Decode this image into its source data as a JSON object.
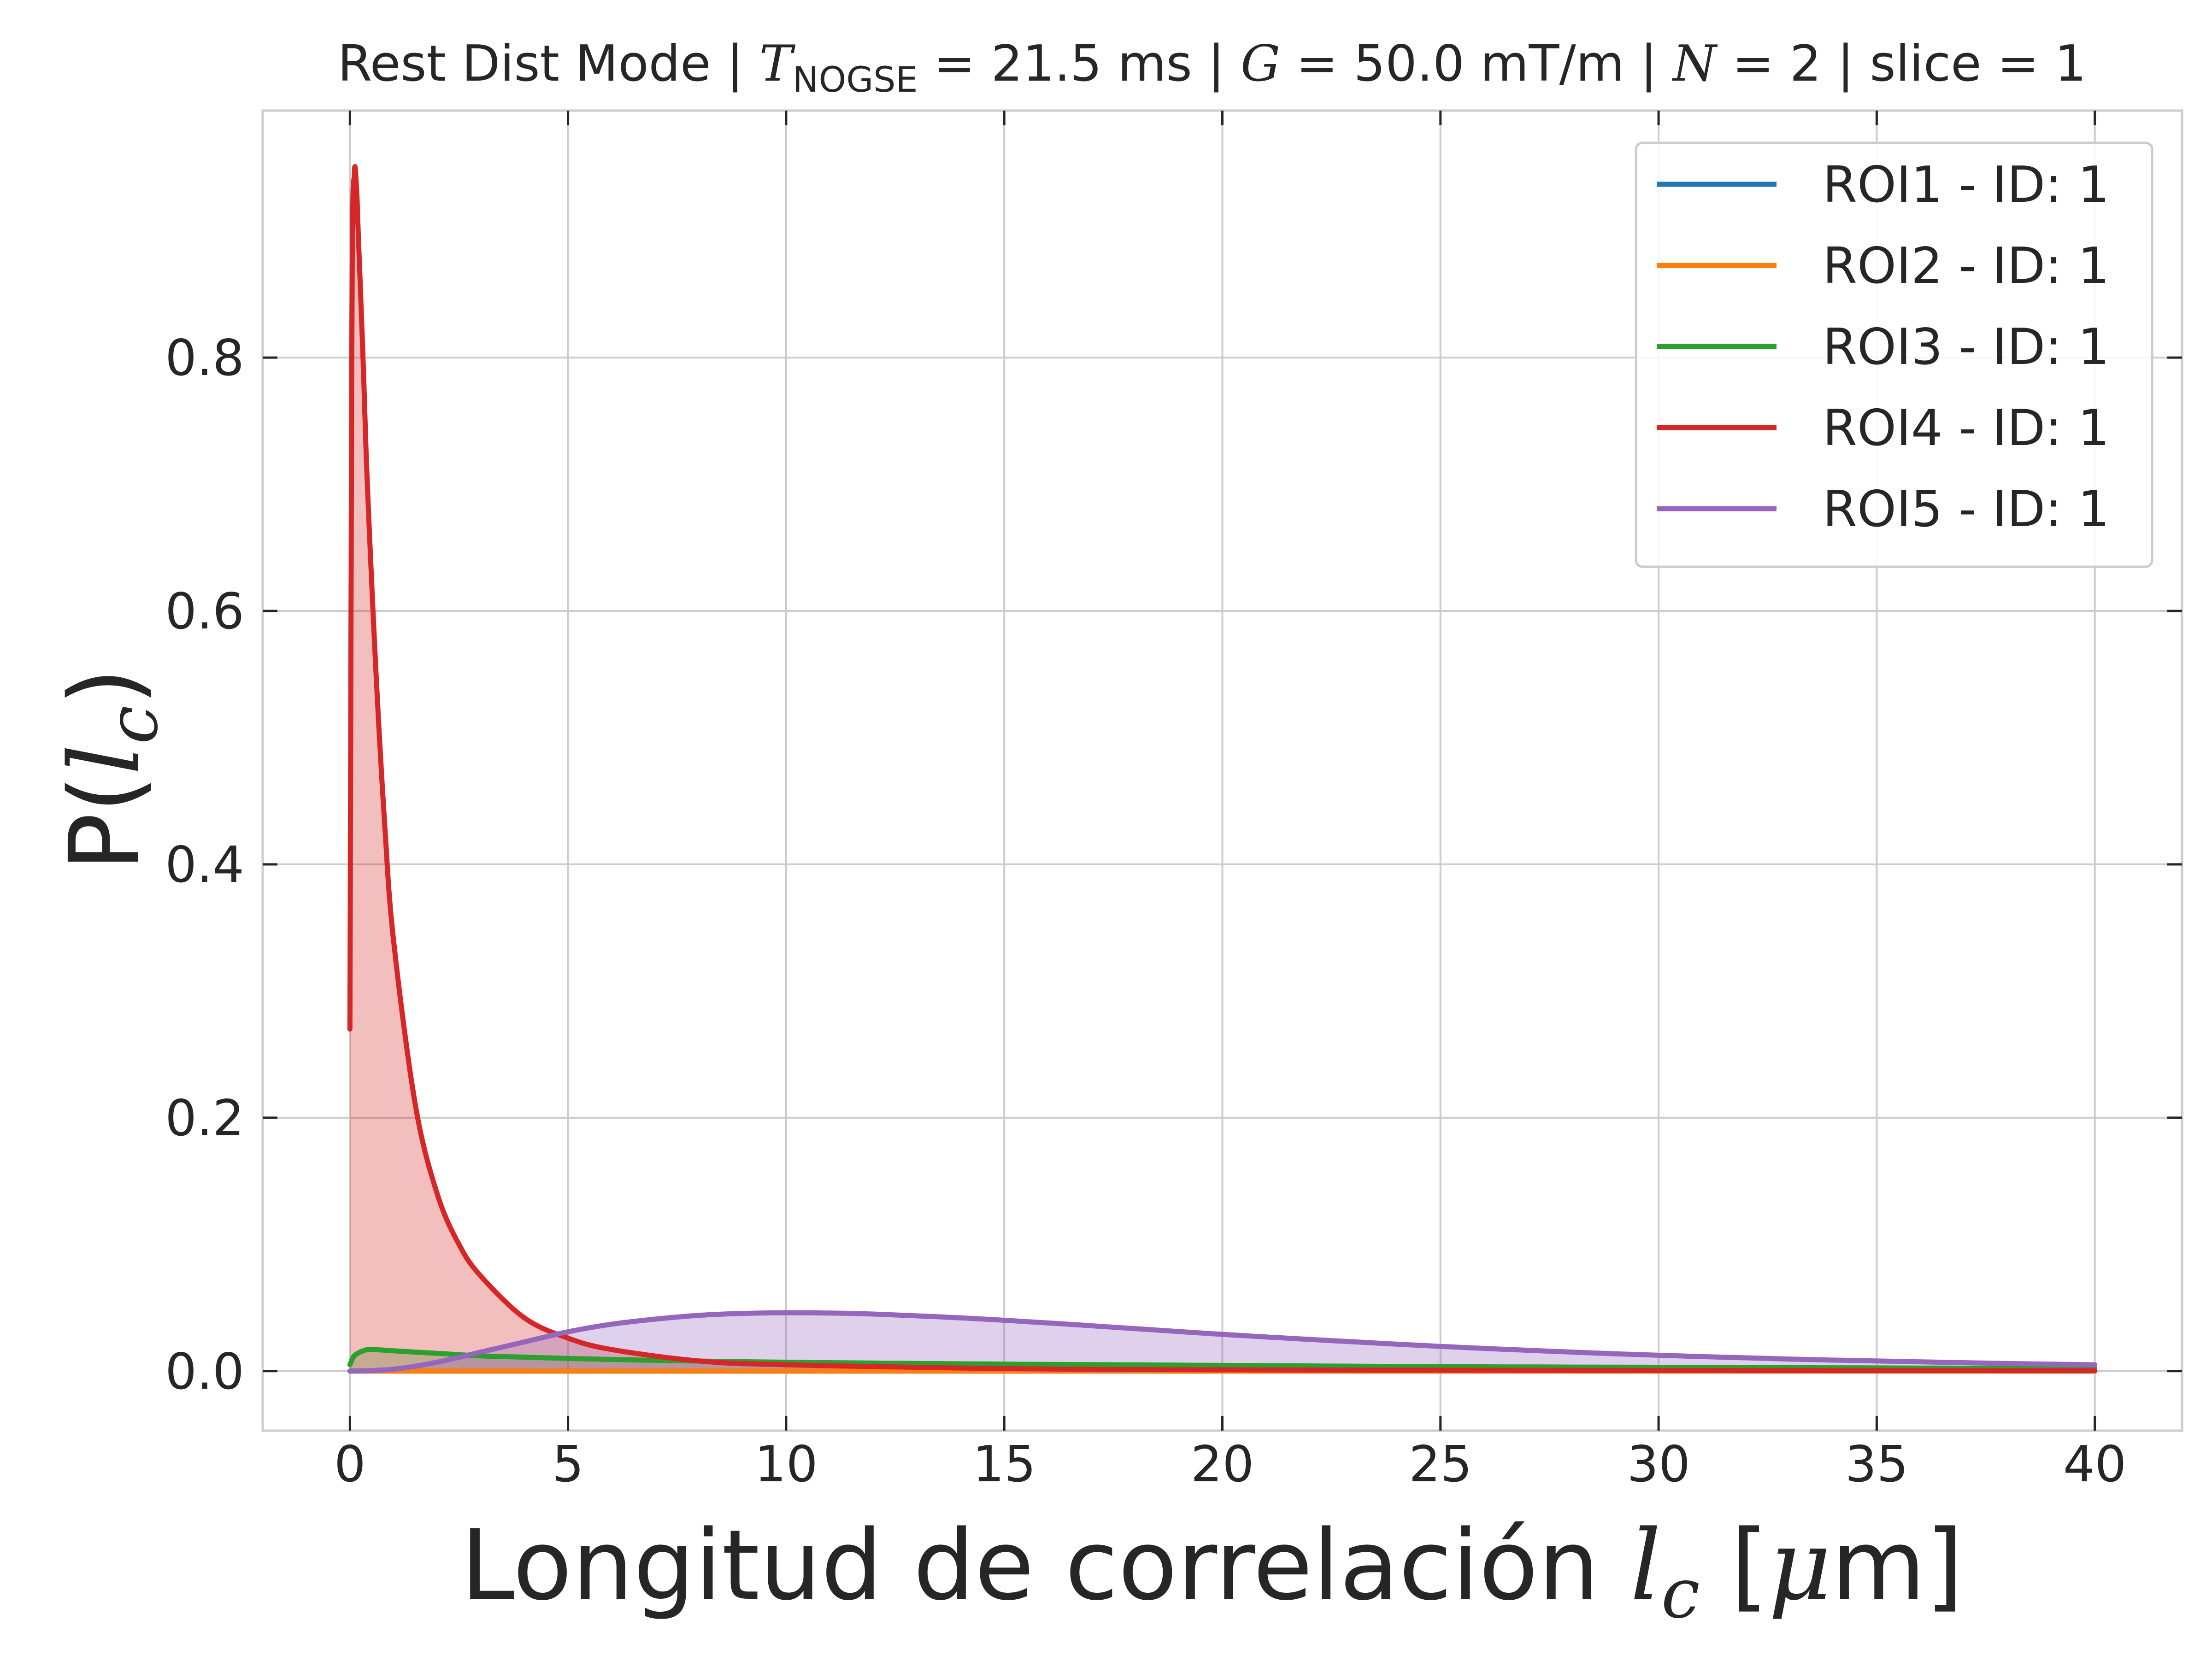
{
  "chart_data": {
    "type": "line",
    "title_parts": {
      "prefix": "Rest Dist Mode | ",
      "t_symbol": "T",
      "t_subscript": "NOGSE",
      "t_value": " = 21.5 ms | ",
      "g_symbol": "G",
      "g_value": " = 50.0 mT/m | ",
      "n_symbol": "N",
      "n_value": " = 2 | slice = 1"
    },
    "xlabel_parts": {
      "text": "Longitud de correlación ",
      "var": "l",
      "sub": "c",
      "unit_open": " [",
      "mu": "μ",
      "unit_close": "m]"
    },
    "ylabel_parts": {
      "text": "P(",
      "var": "l",
      "sub": "c",
      "close": ")"
    },
    "xlim": [
      -2,
      42
    ],
    "ylim": [
      -0.047,
      0.995
    ],
    "xticks": [
      0,
      5,
      10,
      15,
      20,
      25,
      30,
      35,
      40
    ],
    "xtick_labels": [
      "0",
      "5",
      "10",
      "15",
      "20",
      "25",
      "30",
      "35",
      "40"
    ],
    "yticks": [
      0.0,
      0.2,
      0.4,
      0.6,
      0.8
    ],
    "ytick_labels": [
      "0.0",
      "0.2",
      "0.4",
      "0.6",
      "0.8"
    ],
    "grid": true,
    "legend_position": "upper-right",
    "series": [
      {
        "name": "ROI1 - ID: 1",
        "color": "#1f77b4",
        "filled": false,
        "x": [
          0,
          40
        ],
        "y": [
          0,
          0
        ]
      },
      {
        "name": "ROI2 - ID: 1",
        "color": "#ff7f0e",
        "filled": false,
        "x": [
          0,
          40
        ],
        "y": [
          0,
          0
        ]
      },
      {
        "name": "ROI3 - ID: 1",
        "color": "#2ca02c",
        "filled": true,
        "x": [
          0,
          0.1,
          0.3,
          0.5,
          1,
          2,
          3,
          4,
          5,
          7,
          10,
          15,
          20,
          25,
          30,
          35,
          40
        ],
        "y": [
          0.005,
          0.012,
          0.016,
          0.017,
          0.016,
          0.014,
          0.012,
          0.011,
          0.01,
          0.0085,
          0.007,
          0.0055,
          0.0045,
          0.0035,
          0.003,
          0.0025,
          0.002
        ]
      },
      {
        "name": "ROI4 - ID: 1",
        "color": "#d62728",
        "filled": true,
        "x": [
          0,
          0.05,
          0.1,
          0.15,
          0.2,
          0.3,
          0.4,
          0.6,
          0.8,
          1.0,
          1.5,
          2.0,
          2.5,
          3.0,
          4.0,
          5.0,
          6.0,
          8.0,
          10,
          15,
          20,
          30,
          40
        ],
        "y": [
          0.27,
          0.85,
          0.945,
          0.935,
          0.89,
          0.8,
          0.7,
          0.55,
          0.43,
          0.34,
          0.21,
          0.14,
          0.1,
          0.075,
          0.042,
          0.026,
          0.017,
          0.008,
          0.005,
          0.002,
          0.001,
          0.0005,
          0.0003
        ]
      },
      {
        "name": "ROI5 - ID: 1",
        "color": "#9467bd",
        "filled": true,
        "x": [
          0,
          1,
          2,
          3,
          4,
          5,
          6,
          7,
          8,
          9,
          10,
          11,
          12,
          14,
          16,
          18,
          20,
          22,
          25,
          28,
          30,
          33,
          35,
          38,
          40
        ],
        "y": [
          0,
          0.0015,
          0.007,
          0.015,
          0.023,
          0.031,
          0.037,
          0.041,
          0.044,
          0.0455,
          0.046,
          0.0458,
          0.045,
          0.042,
          0.038,
          0.0335,
          0.029,
          0.025,
          0.0195,
          0.015,
          0.0125,
          0.0095,
          0.008,
          0.006,
          0.005
        ]
      }
    ]
  }
}
